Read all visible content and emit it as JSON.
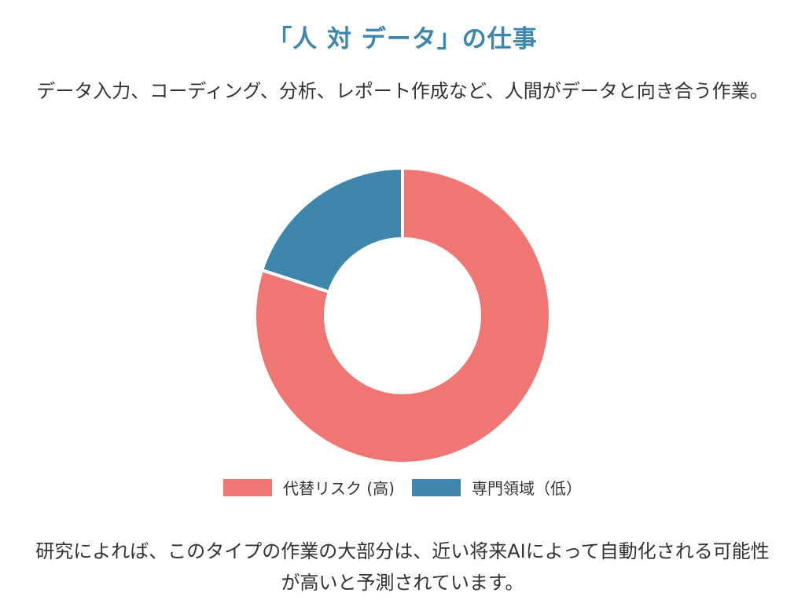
{
  "title": "「人 対 データ」の仕事",
  "subtitle": "データ入力、コーディング、分析、レポート作成など、人間がデータと向き合う作業。",
  "footer": "研究によれば、このタイプの作業の大部分は、近い将来AIによって自動化される可能性が高いと予測されています。",
  "colors": {
    "title": "#3e86ac",
    "risk": "#ef7673",
    "specialized": "#3e86ac"
  },
  "chart_data": {
    "type": "pie",
    "donut": true,
    "legend_position": "bottom",
    "series": [
      {
        "name": "代替リスク (高)",
        "value": 80,
        "color": "#ef7673"
      },
      {
        "name": "専門領域（低）",
        "value": 20,
        "color": "#3e86ac"
      }
    ]
  }
}
